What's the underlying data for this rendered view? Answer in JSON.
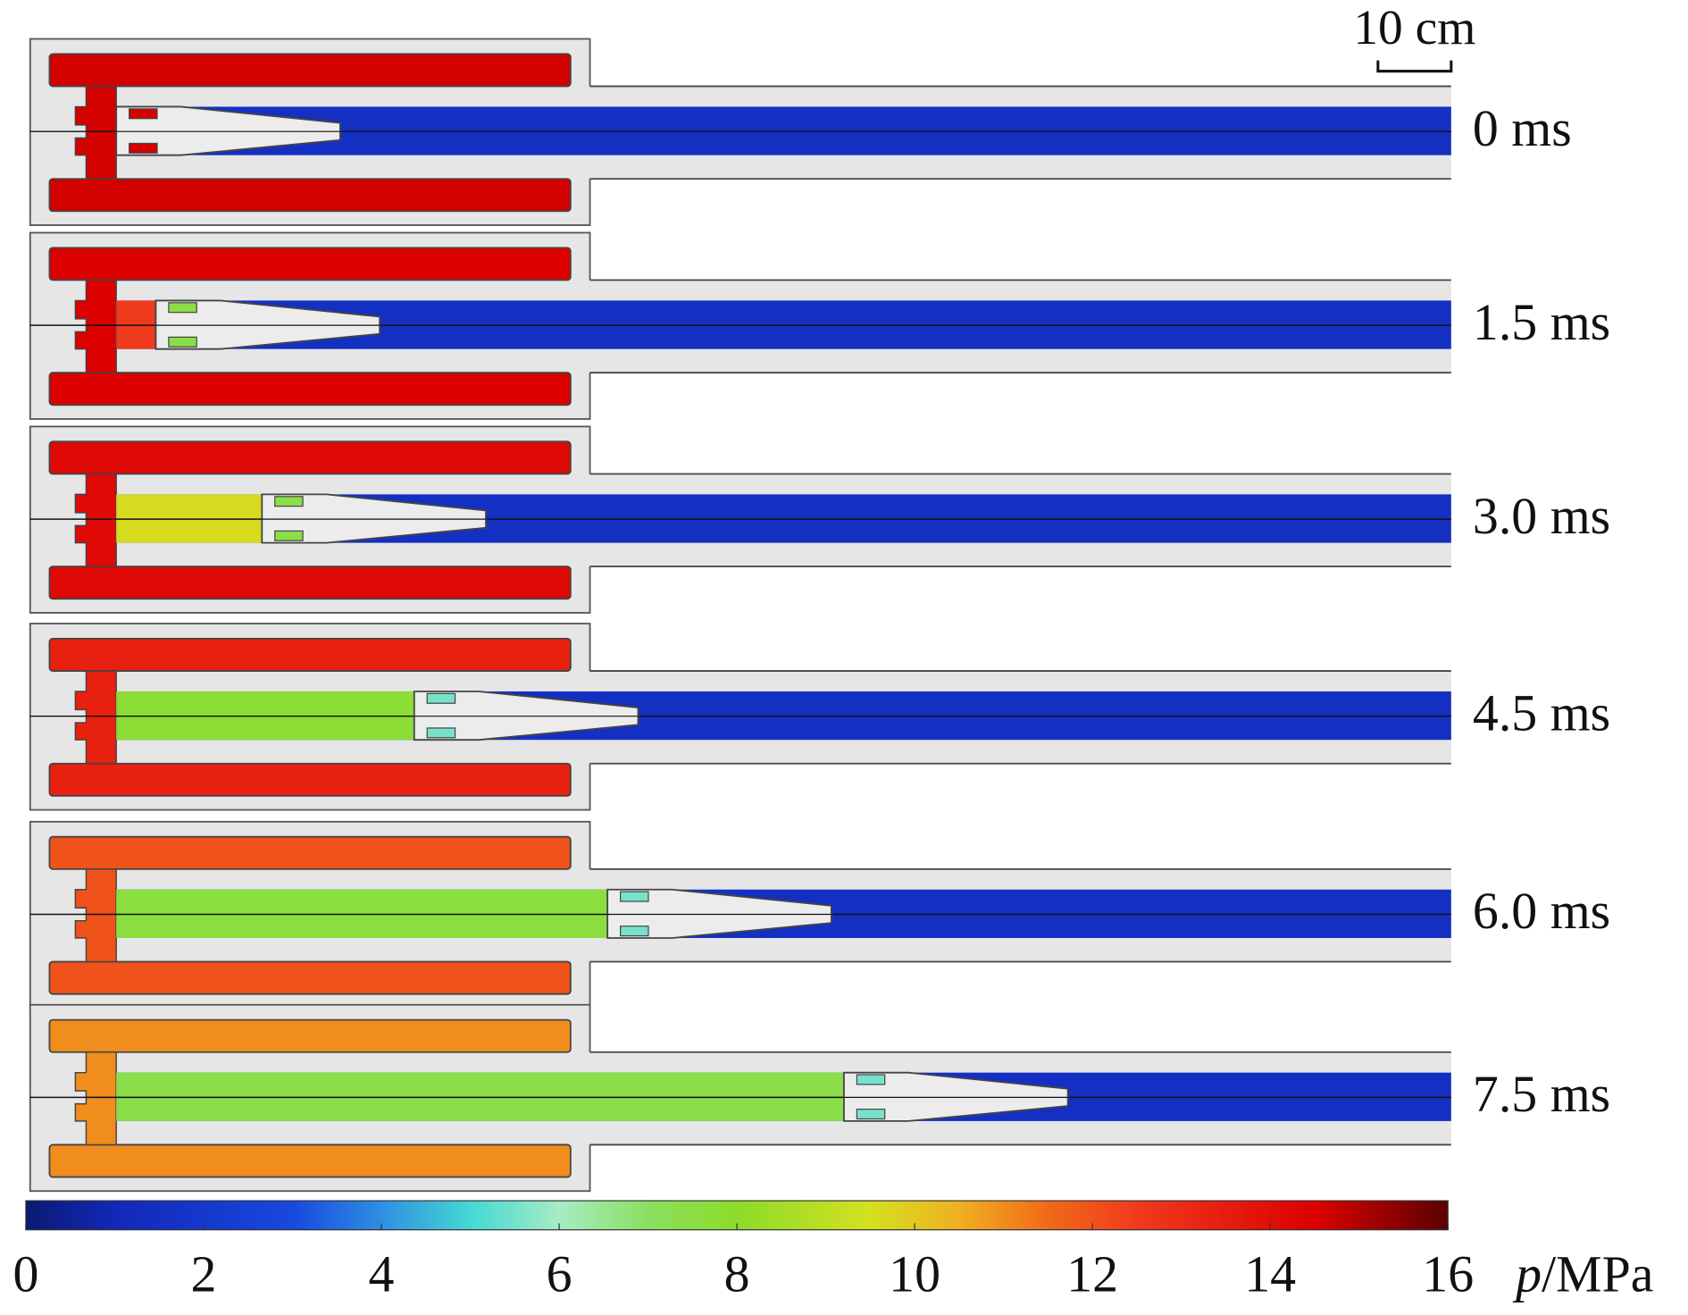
{
  "chart_data": {
    "type": "field",
    "scale_bar": {
      "label": "10 cm",
      "length": 10
    },
    "xlabel_symbol": "p",
    "xlabel_unit": "/MPa",
    "xlim": [
      0,
      16
    ],
    "xticks": [
      0,
      2,
      4,
      6,
      8,
      10,
      12,
      14,
      16
    ],
    "colormap": [
      {
        "value": 0,
        "color": "#0b1a70"
      },
      {
        "value": 1,
        "color": "#1228b8"
      },
      {
        "value": 3,
        "color": "#1848e0"
      },
      {
        "value": 4,
        "color": "#2f8fe0"
      },
      {
        "value": 5,
        "color": "#45d8d4"
      },
      {
        "value": 6,
        "color": "#a6ecc4"
      },
      {
        "value": 7,
        "color": "#8ae060"
      },
      {
        "value": 8,
        "color": "#8cdc2a"
      },
      {
        "value": 9.5,
        "color": "#d4e020"
      },
      {
        "value": 10.5,
        "color": "#f0b020"
      },
      {
        "value": 11.5,
        "color": "#f06a18"
      },
      {
        "value": 12.5,
        "color": "#f03a1e"
      },
      {
        "value": 14.5,
        "color": "#dc0000"
      },
      {
        "value": 16,
        "color": "#5a0000"
      }
    ],
    "barrel_pressure": 1.5,
    "frames": [
      {
        "label": "0 ms",
        "chamber_pressure": 14.6,
        "gas_pressure": 14.6,
        "sabot_pressure": 14.6,
        "displacement": 0
      },
      {
        "label": "1.5 ms",
        "chamber_pressure": 14.5,
        "gas_pressure": 12.5,
        "sabot_pressure": 7.5,
        "displacement": 5.4
      },
      {
        "label": "3.0 ms",
        "chamber_pressure": 14.2,
        "gas_pressure": 9.6,
        "sabot_pressure": 7.5,
        "displacement": 19.9
      },
      {
        "label": "4.5 ms",
        "chamber_pressure": 13.4,
        "gas_pressure": 7.8,
        "sabot_pressure": 5.5,
        "displacement": 40.7
      },
      {
        "label": "6.0 ms",
        "chamber_pressure": 12.0,
        "gas_pressure": 7.6,
        "sabot_pressure": 5.5,
        "displacement": 67.1
      },
      {
        "label": "7.5 ms",
        "chamber_pressure": 11.0,
        "gas_pressure": 7.4,
        "sabot_pressure": 5.5,
        "displacement": 99.4
      }
    ]
  }
}
